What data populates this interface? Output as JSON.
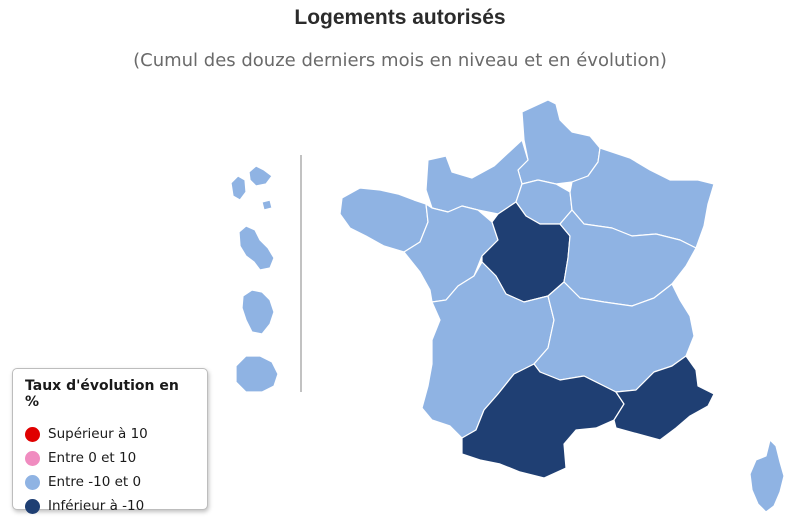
{
  "title": "Logements autorisés",
  "subtitle": "(Cumul des douze derniers mois en niveau et en évolution)",
  "colors": {
    "superieur_10": "#e00000",
    "entre_0_10": "#f08cc0",
    "entre_m10_0": "#8fb3e3",
    "inferieur_m10": "#1f3f73",
    "border": "#ffffff"
  },
  "legend": {
    "title": "Taux d'évolution en %",
    "items": [
      {
        "key": "superieur_10",
        "label": "Supérieur à 10",
        "color": "#e00000"
      },
      {
        "key": "entre_0_10",
        "label": "Entre 0 et 10",
        "color": "#f08cc0"
      },
      {
        "key": "entre_m10_0",
        "label": "Entre -10 et 0",
        "color": "#8fb3e3"
      },
      {
        "key": "inferieur_m10",
        "label": "Inférieur à -10",
        "color": "#1f3f73"
      }
    ]
  },
  "regions": [
    {
      "name": "Hauts-de-France",
      "class": "entre_m10_0"
    },
    {
      "name": "Normandie",
      "class": "entre_m10_0"
    },
    {
      "name": "Île-de-France",
      "class": "entre_m10_0"
    },
    {
      "name": "Grand Est",
      "class": "entre_m10_0"
    },
    {
      "name": "Bretagne",
      "class": "entre_m10_0"
    },
    {
      "name": "Pays de la Loire",
      "class": "entre_m10_0"
    },
    {
      "name": "Centre-Val de Loire",
      "class": "inferieur_m10"
    },
    {
      "name": "Bourgogne-Franche-Comté",
      "class": "entre_m10_0"
    },
    {
      "name": "Nouvelle-Aquitaine",
      "class": "entre_m10_0"
    },
    {
      "name": "Auvergne-Rhône-Alpes",
      "class": "entre_m10_0"
    },
    {
      "name": "Occitanie",
      "class": "inferieur_m10"
    },
    {
      "name": "Provence-Alpes-Côte d'Azur",
      "class": "inferieur_m10"
    },
    {
      "name": "Corse",
      "class": "entre_m10_0"
    },
    {
      "name": "Guadeloupe",
      "class": "entre_m10_0"
    },
    {
      "name": "Martinique",
      "class": "entre_m10_0"
    },
    {
      "name": "Guyane",
      "class": "entre_m10_0"
    },
    {
      "name": "La Réunion",
      "class": "entre_m10_0"
    }
  ]
}
